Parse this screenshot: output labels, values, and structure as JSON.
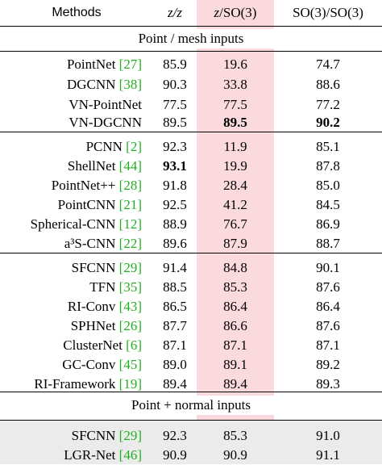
{
  "header": {
    "methods": "Methods",
    "col1": "z/z",
    "col2": "z/SO(3)",
    "col3": "SO(3)/SO(3)"
  },
  "sections": [
    {
      "title": "Point / mesh inputs"
    },
    {
      "title": ""
    },
    {
      "title": ""
    },
    {
      "title": "Point + normal inputs"
    }
  ],
  "rows": [
    {
      "name": "PointNet",
      "ref": "[27]",
      "a": "85.9",
      "b": "19.6",
      "c": "74.7"
    },
    {
      "name": "DGCNN",
      "ref": "[38]",
      "a": "90.3",
      "b": "33.8",
      "c": "88.6"
    },
    {
      "name": "VN-PointNet",
      "ref": "",
      "a": "77.5",
      "b": "77.5",
      "c": "77.2"
    },
    {
      "name": "VN-DGCNN",
      "ref": "",
      "a": "89.5",
      "b": "89.5",
      "c": "90.2"
    },
    {
      "name": "PCNN",
      "ref": "[2]",
      "a": "92.3",
      "b": "11.9",
      "c": "85.1"
    },
    {
      "name": "ShellNet",
      "ref": "[44]",
      "a": "93.1",
      "b": "19.9",
      "c": "87.8"
    },
    {
      "name": "PointNet++",
      "ref": "[28]",
      "a": "91.8",
      "b": "28.4",
      "c": "85.0"
    },
    {
      "name": "PointCNN",
      "ref": "[21]",
      "a": "92.5",
      "b": "41.2",
      "c": "84.5"
    },
    {
      "name": "Spherical-CNN",
      "ref": "[12]",
      "a": "88.9",
      "b": "76.7",
      "c": "86.9"
    },
    {
      "name": "a³S-CNN",
      "ref": "[22]",
      "a": "89.6",
      "b": "87.9",
      "c": "88.7"
    },
    {
      "name": "SFCNN",
      "ref": "[29]",
      "a": "91.4",
      "b": "84.8",
      "c": "90.1"
    },
    {
      "name": "TFN",
      "ref": "[35]",
      "a": "88.5",
      "b": "85.3",
      "c": "87.6"
    },
    {
      "name": "RI-Conv",
      "ref": "[43]",
      "a": "86.5",
      "b": "86.4",
      "c": "86.4"
    },
    {
      "name": "SPHNet",
      "ref": "[26]",
      "a": "87.7",
      "b": "86.6",
      "c": "87.6"
    },
    {
      "name": "ClusterNet",
      "ref": "[6]",
      "a": "87.1",
      "b": "87.1",
      "c": "87.1"
    },
    {
      "name": "GC-Conv",
      "ref": "[45]",
      "a": "89.0",
      "b": "89.1",
      "c": "89.2"
    },
    {
      "name": "RI-Framework",
      "ref": "[19]",
      "a": "89.4",
      "b": "89.4",
      "c": "89.3"
    },
    {
      "name": "SFCNN",
      "ref": "[29]",
      "a": "92.3",
      "b": "85.3",
      "c": "91.0"
    },
    {
      "name": "LGR-Net",
      "ref": "[46]",
      "a": "90.9",
      "b": "90.9",
      "c": "91.1"
    }
  ]
}
